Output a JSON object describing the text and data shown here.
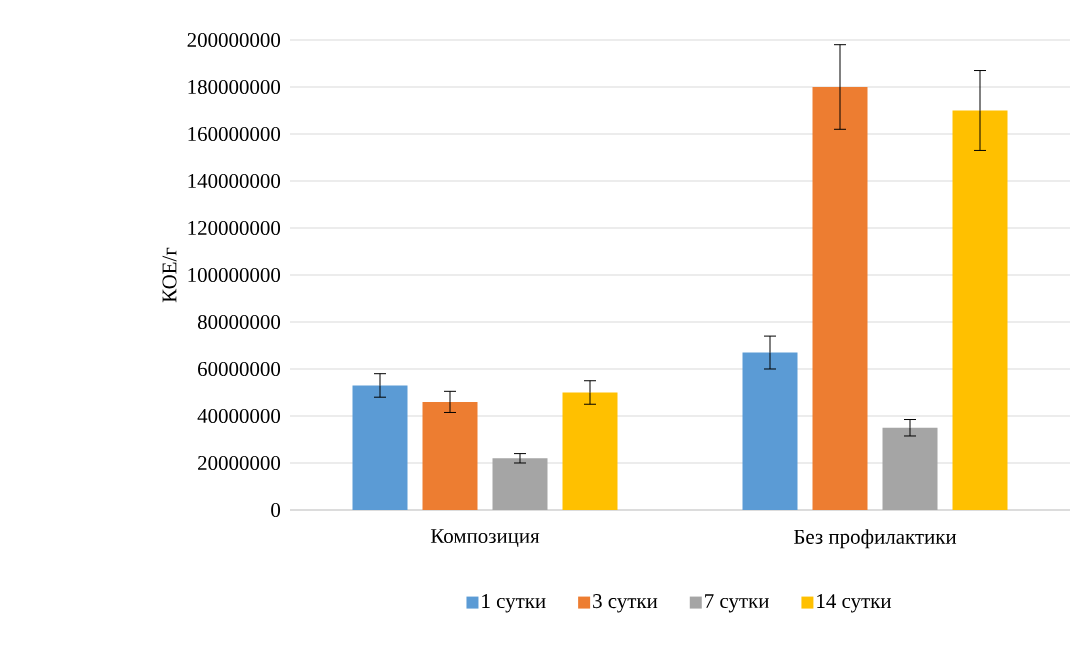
{
  "chart_data": {
    "type": "bar",
    "ylabel": "КОЕ/г",
    "categories": [
      "Композиция",
      "Без профилактики"
    ],
    "series": [
      {
        "name": "1 сутки",
        "color": "#5b9bd5",
        "values": [
          53000000,
          67000000
        ],
        "errors": [
          5000000,
          7000000
        ]
      },
      {
        "name": "3 сутки",
        "color": "#ed7d31",
        "values": [
          46000000,
          180000000
        ],
        "errors": [
          4500000,
          18000000
        ]
      },
      {
        "name": "7 сутки",
        "color": "#a5a5a5",
        "values": [
          22000000,
          35000000
        ],
        "errors": [
          2000000,
          3500000
        ]
      },
      {
        "name": "14 сутки",
        "color": "#ffc000",
        "values": [
          50000000,
          170000000
        ],
        "errors": [
          5000000,
          17000000
        ]
      }
    ],
    "ylim": [
      0,
      200000000
    ],
    "yticks": [
      0,
      20000000,
      40000000,
      60000000,
      80000000,
      100000000,
      120000000,
      140000000,
      160000000,
      180000000,
      200000000
    ],
    "grid": "y",
    "legend": "bottom"
  }
}
